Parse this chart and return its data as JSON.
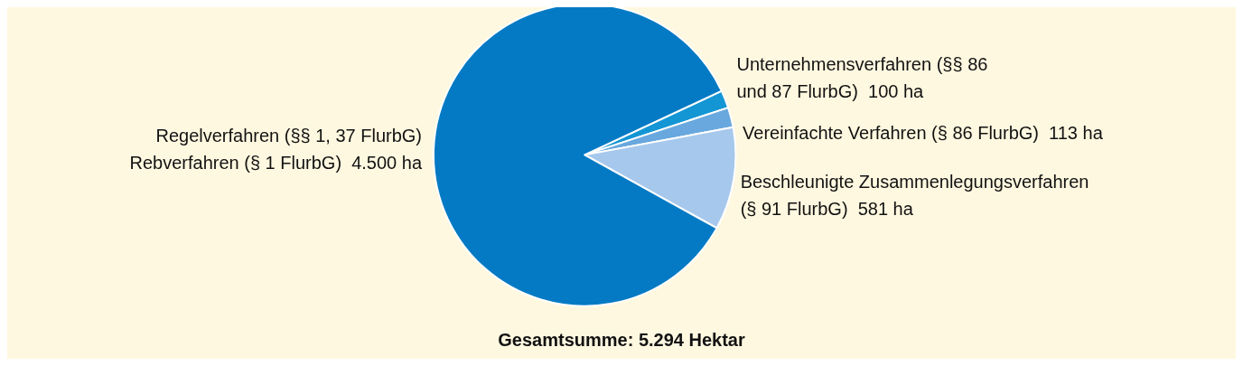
{
  "chart_data": {
    "type": "pie",
    "title": "Gesamtsumme: 5.294 Hektar",
    "categories": [
      "Unternehmensverfahren (§§ 86\nund 87 FlurbG)",
      "Vereinfachte Verfahren (§ 86 FlurbG)",
      "Beschleunigte Zusammenlegungsverfahren\n(§ 91 FlurbG)",
      "Regelverfahren (§§ 1, 37 FlurbG)\nRebverfahren (§ 1 FlurbG)"
    ],
    "values": [
      100,
      113,
      581,
      4500
    ],
    "value_labels": [
      "100 ha",
      "113 ha",
      "581 ha",
      "4.500 ha"
    ],
    "colors": [
      "#1496d4",
      "#68a8de",
      "#a6c8ec",
      "#057ac4"
    ]
  }
}
